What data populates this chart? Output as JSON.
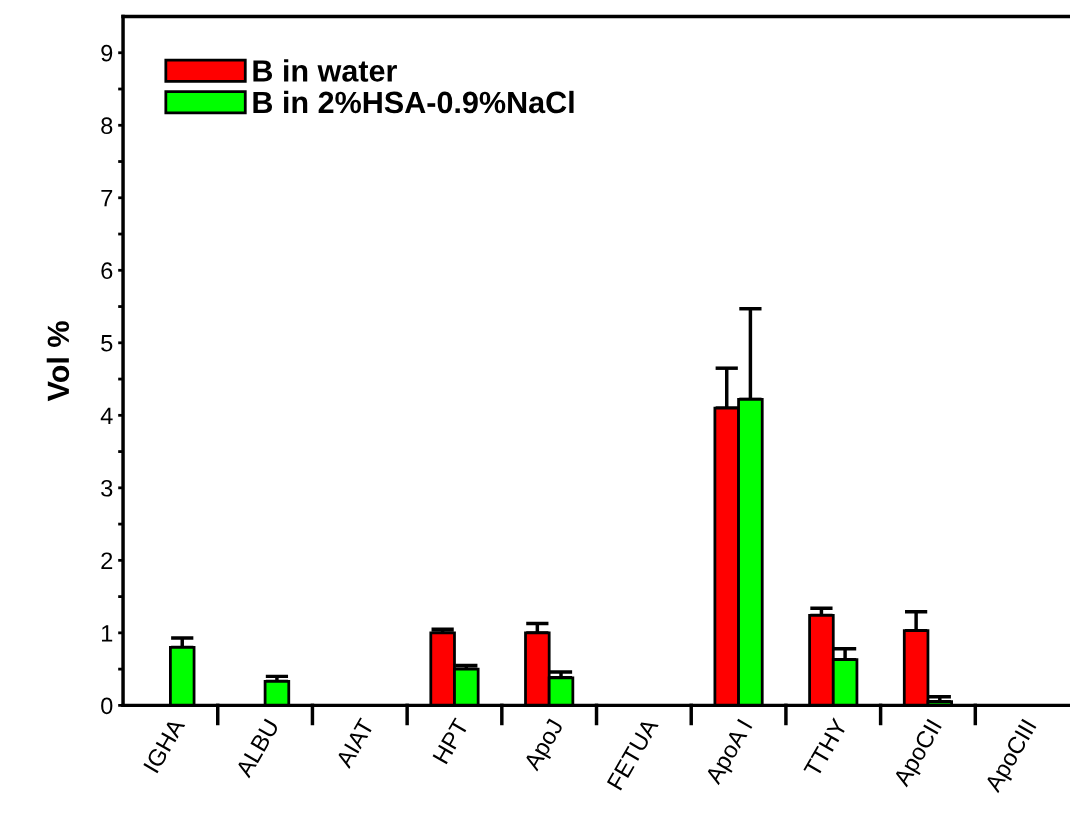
{
  "chart_data": {
    "type": "bar",
    "ylabel": "Vol %",
    "categories": [
      "IGHA",
      "ALBU",
      "AIAT",
      "HPT",
      "ApoJ",
      "FETUA",
      "ApoA I",
      "TTHY",
      "ApoCII",
      "ApoCIII"
    ],
    "series": [
      {
        "name": "B in water",
        "color": "#ff0000",
        "values": [
          null,
          null,
          null,
          1.0,
          1.0,
          null,
          4.1,
          1.24,
          1.03,
          null
        ],
        "errors": [
          null,
          null,
          null,
          [
            1.0,
            1.05
          ],
          [
            1.0,
            1.13
          ],
          null,
          [
            4.1,
            4.65
          ],
          [
            1.24,
            1.34
          ],
          [
            1.03,
            1.29
          ],
          null
        ]
      },
      {
        "name": "B in 2%HSA-0.9%NaCl",
        "color": "#00ff00",
        "values": [
          0.8,
          0.33,
          null,
          0.5,
          0.38,
          null,
          4.22,
          0.63,
          0.05,
          null
        ],
        "errors": [
          [
            0.8,
            0.93
          ],
          [
            0.33,
            0.4
          ],
          null,
          [
            0.5,
            0.55
          ],
          [
            0.38,
            0.46
          ],
          null,
          [
            4.22,
            5.47
          ],
          [
            0.63,
            0.78
          ],
          [
            0.05,
            0.12
          ],
          null
        ]
      }
    ],
    "ylim": [
      0,
      9.5
    ],
    "yticks": [
      0,
      {
        "value": 0.5,
        "label": null
      },
      1,
      {
        "value": 1.5,
        "label": null
      },
      2,
      {
        "value": 2.5,
        "label": null
      },
      3,
      {
        "value": 3.5,
        "label": null
      },
      4,
      {
        "value": 4.5,
        "label": null
      },
      5,
      {
        "value": 5.5,
        "label": null
      },
      6,
      {
        "value": 6.5,
        "label": null
      },
      7,
      {
        "value": 7.5,
        "label": null
      },
      8,
      {
        "value": 8.5,
        "label": null
      },
      9
    ],
    "legend": "top left",
    "grid": false
  }
}
